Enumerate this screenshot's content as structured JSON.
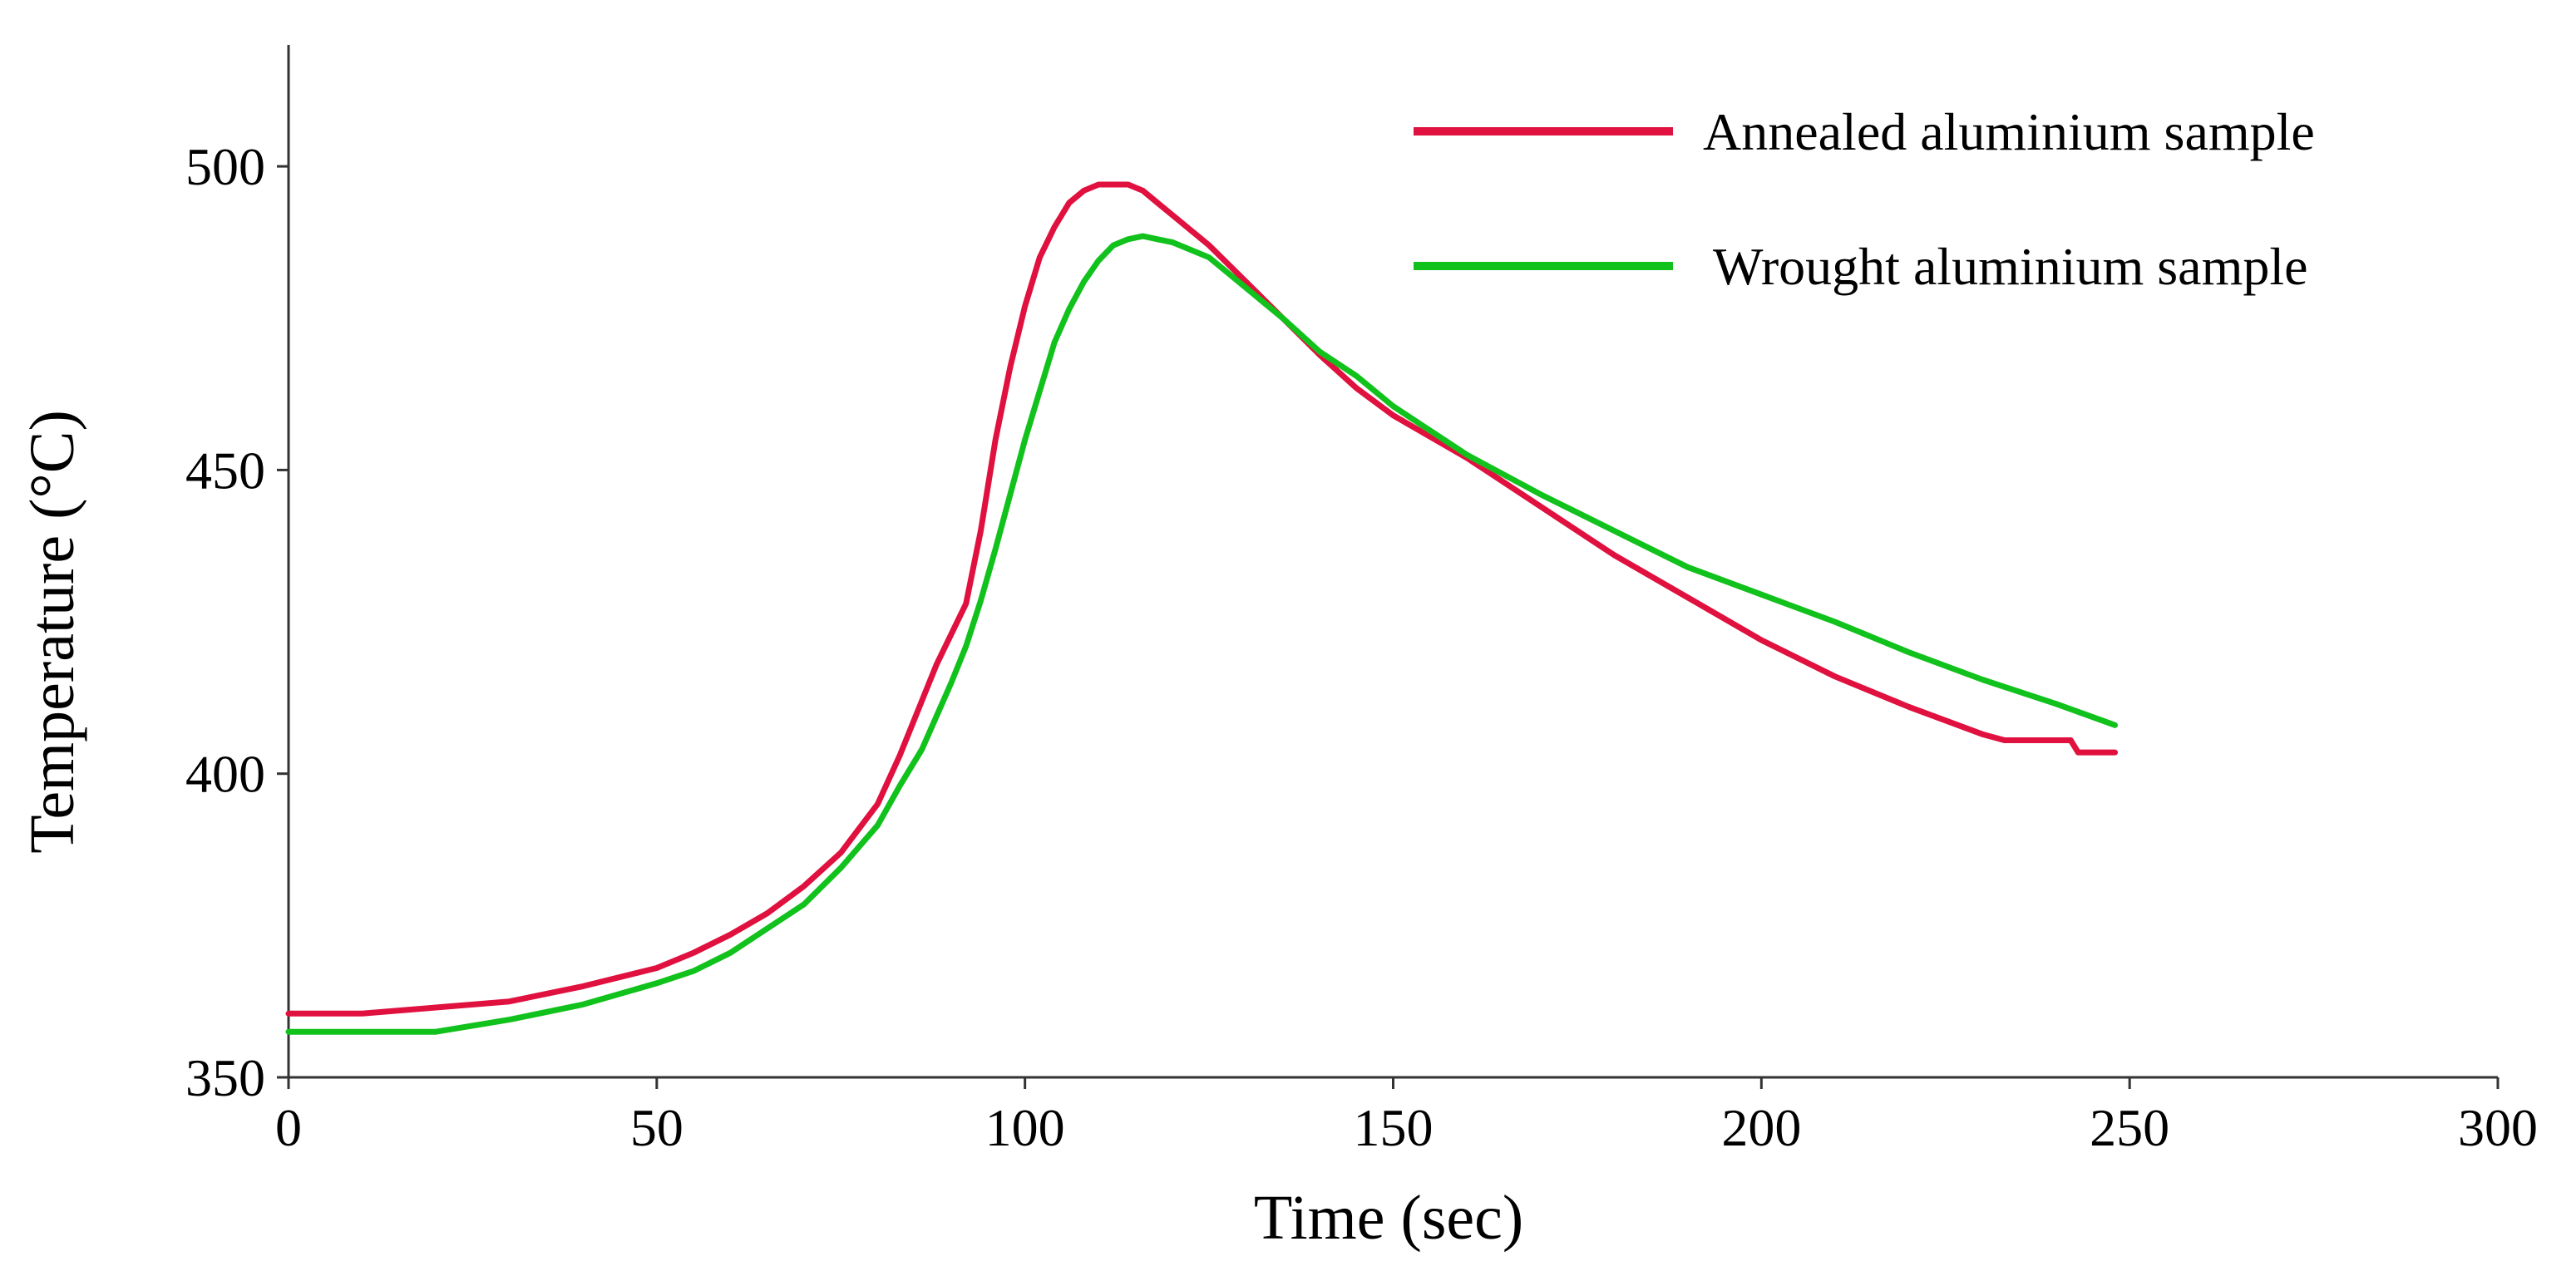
{
  "chart_data": {
    "type": "line",
    "title": "",
    "xlabel": "Time (sec)",
    "ylabel": "Temperature (°C)",
    "xlim": [
      0,
      300
    ],
    "ylim": [
      350,
      520
    ],
    "xticks": [
      0,
      50,
      100,
      150,
      200,
      250,
      300
    ],
    "yticks": [
      350,
      400,
      450,
      500
    ],
    "xtick_labels": [
      "0",
      "50",
      "100",
      "150",
      "200",
      "250",
      "300"
    ],
    "ytick_labels": [
      "350",
      "400",
      "450",
      "500"
    ],
    "grid": false,
    "legend_position": "top-right",
    "series": [
      {
        "name": "Annealed aluminium sample",
        "color": "#e0103f",
        "x": [
          0,
          10,
          20,
          30,
          40,
          50,
          55,
          60,
          65,
          70,
          75,
          80,
          83,
          86,
          88,
          90,
          92,
          94,
          96,
          98,
          100,
          102,
          104,
          106,
          108,
          110,
          112,
          114,
          116,
          118,
          120,
          122,
          125,
          130,
          135,
          140,
          145,
          150,
          160,
          170,
          180,
          190,
          200,
          210,
          220,
          230,
          233,
          242,
          243,
          248
        ],
        "y": [
          360.5,
          360.5,
          361.5,
          362.5,
          365,
          368,
          370.5,
          373.5,
          377,
          381.5,
          387,
          395,
          403,
          412,
          418,
          423,
          428,
          440,
          455,
          467,
          477,
          485,
          490,
          494,
          496,
          497,
          497,
          497,
          496,
          494,
          492,
          490,
          487,
          481,
          475,
          469,
          463.5,
          459,
          452,
          444,
          436,
          429,
          422,
          416,
          411,
          406.5,
          405.5,
          405.5,
          403.5,
          403.5
        ]
      },
      {
        "name": "Wrought aluminium sample",
        "color": "#11c11c",
        "x": [
          0,
          10,
          20,
          30,
          40,
          50,
          55,
          60,
          65,
          70,
          75,
          80,
          83,
          86,
          88,
          90,
          92,
          94,
          96,
          98,
          100,
          102,
          104,
          106,
          108,
          110,
          112,
          114,
          116,
          118,
          120,
          125,
          130,
          135,
          140,
          145,
          150,
          160,
          170,
          180,
          190,
          200,
          210,
          220,
          230,
          240,
          248
        ],
        "y": [
          357.5,
          357.5,
          357.5,
          359.5,
          362,
          365.5,
          367.5,
          370.5,
          374.5,
          378.5,
          384.5,
          391.5,
          398,
          404,
          409.5,
          415,
          421,
          428.5,
          437,
          446,
          455,
          463,
          471,
          476.5,
          481,
          484.5,
          487,
          488,
          488.5,
          488,
          487.5,
          485,
          480,
          475,
          469.5,
          465.5,
          460.5,
          452.5,
          446,
          440,
          434,
          429.5,
          425,
          420,
          415.5,
          411.5,
          408
        ]
      }
    ]
  }
}
